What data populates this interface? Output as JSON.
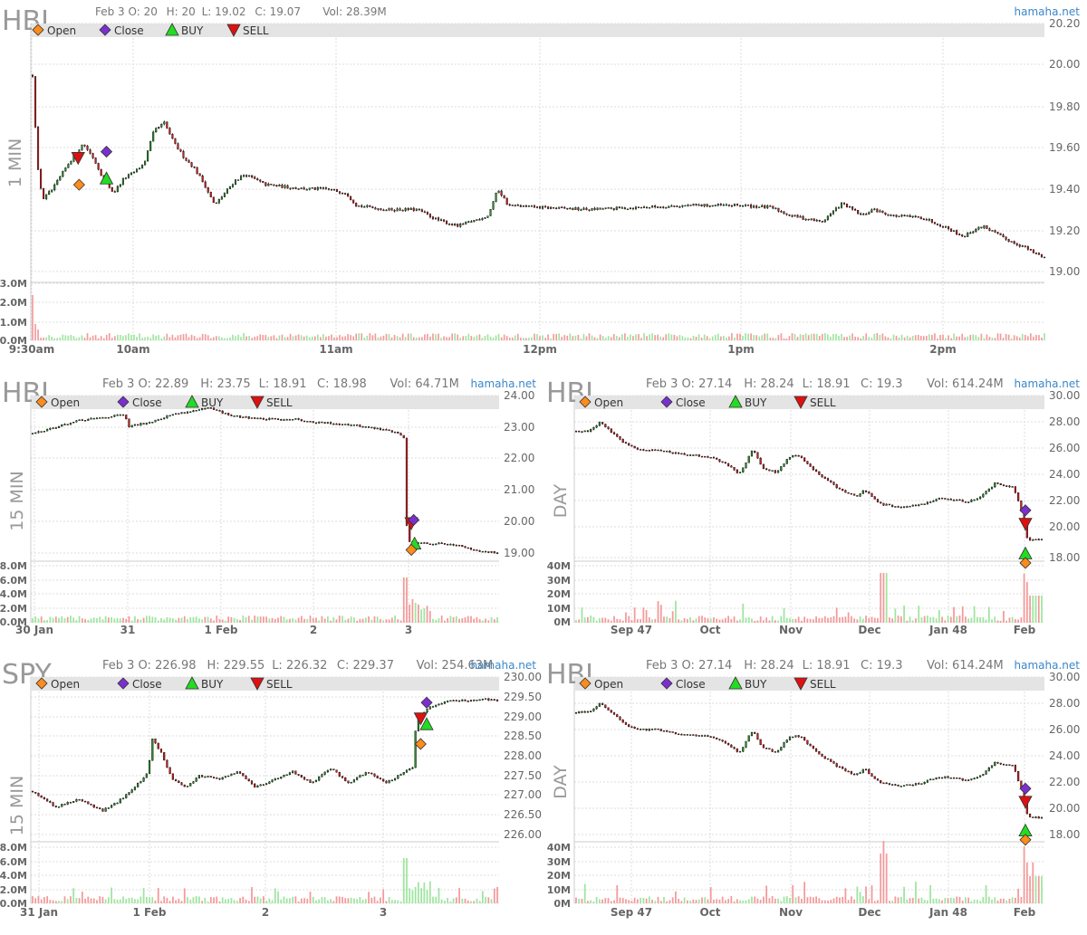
{
  "colors": {
    "up": "#2e8b2e",
    "down": "#c81e1e",
    "wick": "#000000",
    "vol_up": "#9fe59f",
    "vol_down": "#f49a9a",
    "legend_bg": "#e4e4e4",
    "grid": "#dddddd",
    "brand": "#3a87c8",
    "open_marker": "#ff8c1a",
    "close_marker": "#7b2fd0",
    "buy_marker": "#22dd22",
    "sell_marker": "#dd1111",
    "symbol_text": "#999999",
    "axis_text": "#666666"
  },
  "legend": {
    "open": "Open",
    "close": "Close",
    "buy": "BUY",
    "sell": "SELL"
  },
  "brand": "hamaha.net",
  "chart_data": [
    {
      "type": "candlestick",
      "symbol": "HBI",
      "timeframe": "1 MIN",
      "header": {
        "date": "Feb 3",
        "open": "O: 20",
        "high": "H: 20",
        "low": "L: 19.02",
        "close": "C: 19.07",
        "volume": "Vol: 28.39M"
      },
      "y_ticks": [
        "20.20",
        "20.00",
        "19.80",
        "19.60",
        "19.40",
        "19.20",
        "19.00"
      ],
      "ylim": [
        19.0,
        20.2
      ],
      "vol_ticks": [
        "3.0M",
        "2.0M",
        "1.0M",
        "0.0M"
      ],
      "x_ticks": [
        "9:30am",
        "10am",
        "11am",
        "12pm",
        "1pm",
        "2pm"
      ],
      "price_path": [
        [
          0,
          19.95
        ],
        [
          0.5,
          19.5
        ],
        [
          1,
          19.35
        ],
        [
          2,
          19.4
        ],
        [
          3.5,
          19.52
        ],
        [
          5,
          19.62
        ],
        [
          6,
          19.55
        ],
        [
          7,
          19.45
        ],
        [
          8,
          19.38
        ],
        [
          9,
          19.45
        ],
        [
          10,
          19.48
        ],
        [
          11,
          19.52
        ],
        [
          12,
          19.68
        ],
        [
          13,
          19.72
        ],
        [
          14,
          19.62
        ],
        [
          15,
          19.55
        ],
        [
          16,
          19.5
        ],
        [
          17,
          19.42
        ],
        [
          18,
          19.32
        ],
        [
          19,
          19.38
        ],
        [
          20,
          19.44
        ],
        [
          21,
          19.47
        ],
        [
          23,
          19.42
        ],
        [
          25,
          19.41
        ],
        [
          27,
          19.4
        ],
        [
          29,
          19.4
        ],
        [
          31,
          19.38
        ],
        [
          32,
          19.32
        ],
        [
          35,
          19.3
        ],
        [
          38,
          19.3
        ],
        [
          40,
          19.25
        ],
        [
          42,
          19.22
        ],
        [
          45,
          19.27
        ],
        [
          46,
          19.4
        ],
        [
          47,
          19.32
        ],
        [
          50,
          19.31
        ],
        [
          55,
          19.3
        ],
        [
          60,
          19.31
        ],
        [
          65,
          19.32
        ],
        [
          70,
          19.32
        ],
        [
          73,
          19.31
        ],
        [
          75,
          19.27
        ],
        [
          78,
          19.24
        ],
        [
          80,
          19.33
        ],
        [
          82,
          19.27
        ],
        [
          83,
          19.3
        ],
        [
          85,
          19.27
        ],
        [
          88,
          19.26
        ],
        [
          90,
          19.22
        ],
        [
          92,
          19.17
        ],
        [
          93,
          19.2
        ],
        [
          94,
          19.22
        ],
        [
          96,
          19.16
        ],
        [
          98,
          19.12
        ],
        [
          99,
          19.09
        ],
        [
          100,
          19.07
        ]
      ],
      "markers": [
        {
          "type": "sell",
          "t": 4.5,
          "price": 19.55
        },
        {
          "type": "open",
          "t": 4.6,
          "price": 19.42
        },
        {
          "type": "buy",
          "t": 7.3,
          "price": 19.45
        },
        {
          "type": "close",
          "t": 7.3,
          "price": 19.58
        }
      ]
    },
    {
      "type": "candlestick",
      "symbol": "HBI",
      "timeframe": "15 MIN",
      "header": {
        "date": "Feb 3",
        "open": "O: 22.89",
        "high": "H: 23.75",
        "low": "L: 18.91",
        "close": "C: 18.98",
        "volume": "Vol: 64.71M"
      },
      "y_ticks": [
        "24.00",
        "23.00",
        "22.00",
        "21.00",
        "20.00",
        "19.00"
      ],
      "ylim": [
        18.5,
        24.0
      ],
      "vol_ticks": [
        "8.0M",
        "6.0M",
        "4.0M",
        "2.0M",
        "0.0M"
      ],
      "x_ticks": [
        "30 Jan",
        "31",
        "1 Feb",
        "2",
        "3"
      ],
      "price_path": [
        [
          0,
          22.8
        ],
        [
          5,
          23.0
        ],
        [
          10,
          23.2
        ],
        [
          15,
          23.3
        ],
        [
          20,
          23.4
        ],
        [
          20.3,
          23.0
        ],
        [
          25,
          23.15
        ],
        [
          30,
          23.4
        ],
        [
          38,
          23.6
        ],
        [
          43,
          23.35
        ],
        [
          50,
          23.25
        ],
        [
          57,
          23.25
        ],
        [
          60,
          23.15
        ],
        [
          67,
          23.1
        ],
        [
          72,
          23.0
        ],
        [
          78,
          22.85
        ],
        [
          80,
          22.65
        ],
        [
          80.5,
          19.9
        ],
        [
          81,
          19.35
        ],
        [
          85,
          19.3
        ],
        [
          90,
          19.3
        ],
        [
          95,
          19.1
        ],
        [
          100,
          19.0
        ]
      ],
      "markers": [
        {
          "type": "sell",
          "t": 81.5,
          "price": 19.95
        },
        {
          "type": "close",
          "t": 82.0,
          "price": 20.05
        },
        {
          "type": "buy",
          "t": 82.2,
          "price": 19.3
        },
        {
          "type": "open",
          "t": 81.5,
          "price": 19.1
        }
      ]
    },
    {
      "type": "candlestick",
      "symbol": "HBI",
      "timeframe": "DAY",
      "header": {
        "date": "Feb 3",
        "open": "O: 27.14",
        "high": "H: 28.24",
        "low": "L: 18.91",
        "close": "C: 19.3",
        "volume": "Vol: 614.24M"
      },
      "y_ticks": [
        "30.00",
        "28.00",
        "26.00",
        "24.00",
        "22.00",
        "20.00",
        "18.00"
      ],
      "ylim": [
        17.0,
        30.0
      ],
      "vol_ticks": [
        "40M",
        "30M",
        "20M",
        "10M",
        "0M"
      ],
      "x_ticks": [
        "Sep 47",
        "Oct",
        "Nov",
        "Dec",
        "Jan 48",
        "Feb"
      ],
      "price_path": [
        [
          0,
          27.3
        ],
        [
          3,
          27.4
        ],
        [
          5,
          28.0
        ],
        [
          8,
          27.2
        ],
        [
          11,
          26.3
        ],
        [
          14,
          26.0
        ],
        [
          17,
          26.0
        ],
        [
          20,
          25.8
        ],
        [
          24,
          25.6
        ],
        [
          28,
          25.5
        ],
        [
          32,
          25.0
        ],
        [
          35,
          24.2
        ],
        [
          38,
          26.0
        ],
        [
          40,
          24.6
        ],
        [
          43,
          24.3
        ],
        [
          46,
          25.5
        ],
        [
          48,
          25.5
        ],
        [
          52,
          24.2
        ],
        [
          56,
          23.2
        ],
        [
          60,
          22.5
        ],
        [
          62,
          23.0
        ],
        [
          65,
          22.0
        ],
        [
          70,
          21.7
        ],
        [
          74,
          21.9
        ],
        [
          78,
          22.4
        ],
        [
          81,
          22.3
        ],
        [
          84,
          22.1
        ],
        [
          87,
          22.5
        ],
        [
          90,
          23.5
        ],
        [
          94,
          23.2
        ],
        [
          96,
          21.0
        ],
        [
          97,
          19.3
        ],
        [
          100,
          19.3
        ]
      ],
      "markers": [
        {
          "type": "close",
          "t": 96.5,
          "price": 21.5
        },
        {
          "type": "sell",
          "t": 96.5,
          "price": 20.5
        },
        {
          "type": "buy",
          "t": 96.5,
          "price": 18.3
        },
        {
          "type": "open",
          "t": 96.5,
          "price": 17.6
        }
      ]
    },
    {
      "type": "candlestick",
      "symbol": "SPY",
      "timeframe": "15 MIN",
      "header": {
        "date": "Feb 3",
        "open": "O: 226.98",
        "high": "H: 229.55",
        "low": "L: 226.32",
        "close": "C: 229.37",
        "volume": "Vol: 254.63M"
      },
      "y_ticks": [
        "230.00",
        "229.50",
        "229.00",
        "228.50",
        "228.00",
        "227.50",
        "227.00",
        "226.50",
        "226.00"
      ],
      "ylim": [
        225.8,
        230.0
      ],
      "vol_ticks": [
        "8.0M",
        "6.0M",
        "4.0M",
        "2.0M",
        "0.0M"
      ],
      "x_ticks": [
        "31 Jan",
        "1 Feb",
        "2",
        "3"
      ],
      "price_path": [
        [
          0,
          227.1
        ],
        [
          5,
          226.7
        ],
        [
          10,
          226.9
        ],
        [
          15,
          226.6
        ],
        [
          18,
          226.8
        ],
        [
          22,
          227.2
        ],
        [
          25,
          227.6
        ],
        [
          25.5,
          228.5
        ],
        [
          28,
          228.0
        ],
        [
          30,
          227.4
        ],
        [
          33,
          227.2
        ],
        [
          36,
          227.5
        ],
        [
          40,
          227.4
        ],
        [
          44,
          227.6
        ],
        [
          48,
          227.2
        ],
        [
          52,
          227.4
        ],
        [
          56,
          227.6
        ],
        [
          60,
          227.3
        ],
        [
          64,
          227.7
        ],
        [
          68,
          227.3
        ],
        [
          72,
          227.6
        ],
        [
          76,
          227.3
        ],
        [
          80,
          227.6
        ],
        [
          82,
          227.7
        ],
        [
          82.5,
          228.9
        ],
        [
          85,
          229.2
        ],
        [
          88,
          229.35
        ],
        [
          90,
          229.4
        ],
        [
          94,
          229.4
        ],
        [
          97,
          229.45
        ],
        [
          100,
          229.4
        ]
      ],
      "markers": [
        {
          "type": "sell",
          "t": 83.5,
          "price": 228.95
        },
        {
          "type": "close",
          "t": 84.8,
          "price": 229.35
        },
        {
          "type": "buy",
          "t": 84.8,
          "price": 228.8
        },
        {
          "type": "open",
          "t": 83.5,
          "price": 228.3
        }
      ]
    },
    {
      "type": "candlestick",
      "symbol": "HBI",
      "timeframe": "DAY",
      "header": {
        "date": "Feb 3",
        "open": "O: 27.14",
        "high": "H: 28.24",
        "low": "L: 18.91",
        "close": "C: 19.3",
        "volume": "Vol: 614.24M"
      },
      "y_ticks": [
        "30.00",
        "28.00",
        "26.00",
        "24.00",
        "22.00",
        "20.00",
        "18.00"
      ],
      "ylim": [
        17.0,
        30.0
      ],
      "vol_ticks": [
        "40M",
        "30M",
        "20M",
        "10M",
        "0M"
      ],
      "x_ticks": [
        "Sep 47",
        "Oct",
        "Nov",
        "Dec",
        "Jan 48",
        "Feb"
      ],
      "price_path": [
        [
          0,
          27.3
        ],
        [
          3,
          27.4
        ],
        [
          5,
          28.0
        ],
        [
          8,
          27.2
        ],
        [
          11,
          26.3
        ],
        [
          14,
          26.0
        ],
        [
          17,
          26.0
        ],
        [
          20,
          25.8
        ],
        [
          24,
          25.6
        ],
        [
          28,
          25.5
        ],
        [
          32,
          25.0
        ],
        [
          35,
          24.2
        ],
        [
          38,
          26.0
        ],
        [
          40,
          24.6
        ],
        [
          43,
          24.3
        ],
        [
          46,
          25.5
        ],
        [
          48,
          25.5
        ],
        [
          52,
          24.2
        ],
        [
          56,
          23.2
        ],
        [
          60,
          22.5
        ],
        [
          62,
          23.0
        ],
        [
          65,
          22.0
        ],
        [
          70,
          21.7
        ],
        [
          74,
          21.9
        ],
        [
          78,
          22.4
        ],
        [
          81,
          22.3
        ],
        [
          84,
          22.1
        ],
        [
          87,
          22.5
        ],
        [
          90,
          23.5
        ],
        [
          94,
          23.2
        ],
        [
          96,
          21.0
        ],
        [
          97,
          19.3
        ],
        [
          100,
          19.3
        ]
      ],
      "markers": [
        {
          "type": "close",
          "t": 96.5,
          "price": 21.5
        },
        {
          "type": "sell",
          "t": 96.5,
          "price": 20.5
        },
        {
          "type": "buy",
          "t": 96.5,
          "price": 18.3
        },
        {
          "type": "open",
          "t": 96.5,
          "price": 17.6
        }
      ]
    }
  ]
}
